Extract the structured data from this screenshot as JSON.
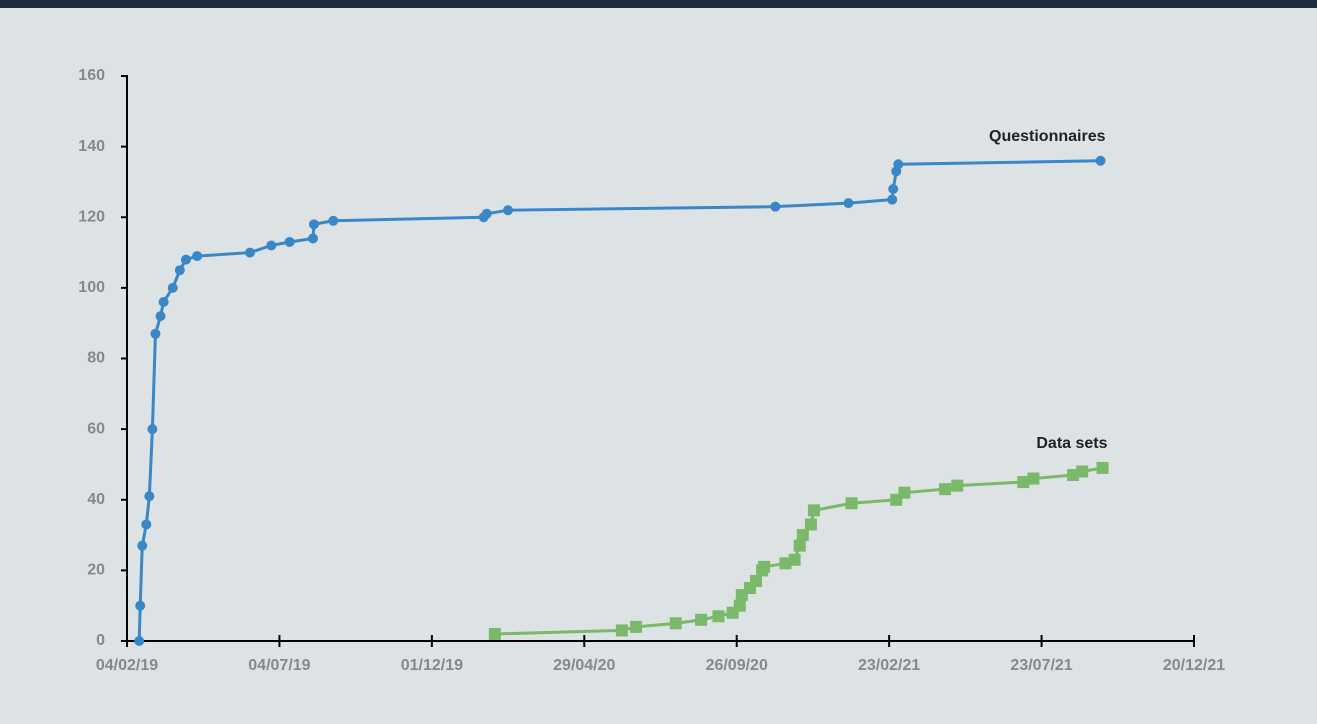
{
  "chart_data": {
    "type": "line",
    "xlim": [
      "2019-02-04",
      "2021-12-20"
    ],
    "xticks": [
      {
        "value": "2019-02-04",
        "label": "04/02/19"
      },
      {
        "value": "2019-07-04",
        "label": "04/07/19"
      },
      {
        "value": "2019-12-01",
        "label": "01/12/19"
      },
      {
        "value": "2020-04-29",
        "label": "29/04/20"
      },
      {
        "value": "2020-09-26",
        "label": "26/09/20"
      },
      {
        "value": "2021-02-23",
        "label": "23/02/21"
      },
      {
        "value": "2021-07-23",
        "label": "23/07/21"
      },
      {
        "value": "2021-12-20",
        "label": "20/12/21"
      }
    ],
    "ylim": [
      0,
      160
    ],
    "yticks": [
      0,
      20,
      40,
      60,
      80,
      100,
      120,
      140,
      160
    ],
    "series": [
      {
        "name": "Questionnaires",
        "color": "#3a87c8",
        "marker": "circle",
        "x": [
          "2019-02-16",
          "2019-02-17",
          "2019-02-19",
          "2019-02-23",
          "2019-02-26",
          "2019-03-01",
          "2019-03-04",
          "2019-03-09",
          "2019-03-12",
          "2019-03-21",
          "2019-03-28",
          "2019-04-03",
          "2019-04-14",
          "2019-06-05",
          "2019-06-26",
          "2019-07-14",
          "2019-08-06",
          "2019-08-07",
          "2019-08-26",
          "2020-01-21",
          "2020-01-24",
          "2020-02-14",
          "2020-11-03",
          "2021-01-14",
          "2021-02-26",
          "2021-02-27",
          "2021-03-02",
          "2021-03-04",
          "2021-09-19"
        ],
        "values": [
          0,
          10,
          27,
          33,
          41,
          60,
          87,
          92,
          96,
          100,
          105,
          108,
          109,
          110,
          112,
          113,
          114,
          118,
          119,
          120,
          121,
          122,
          123,
          124,
          125,
          128,
          133,
          135,
          136
        ]
      },
      {
        "name": "Data sets",
        "color": "#7ab86a",
        "marker": "square",
        "x": [
          "2020-02-01",
          "2020-06-05",
          "2020-06-19",
          "2020-07-28",
          "2020-08-22",
          "2020-09-08",
          "2020-09-22",
          "2020-09-29",
          "2020-10-01",
          "2020-10-09",
          "2020-10-15",
          "2020-10-21",
          "2020-10-23",
          "2020-11-13",
          "2020-11-22",
          "2020-11-27",
          "2020-11-30",
          "2020-12-08",
          "2020-12-11",
          "2021-01-17",
          "2021-03-02",
          "2021-03-10",
          "2021-04-19",
          "2021-05-01",
          "2021-07-05",
          "2021-07-15",
          "2021-08-23",
          "2021-09-01",
          "2021-09-21"
        ],
        "values": [
          2,
          3,
          4,
          5,
          6,
          7,
          8,
          10,
          13,
          15,
          17,
          20,
          21,
          22,
          23,
          27,
          30,
          33,
          37,
          39,
          40,
          42,
          43,
          44,
          45,
          46,
          47,
          48,
          49
        ]
      }
    ]
  }
}
